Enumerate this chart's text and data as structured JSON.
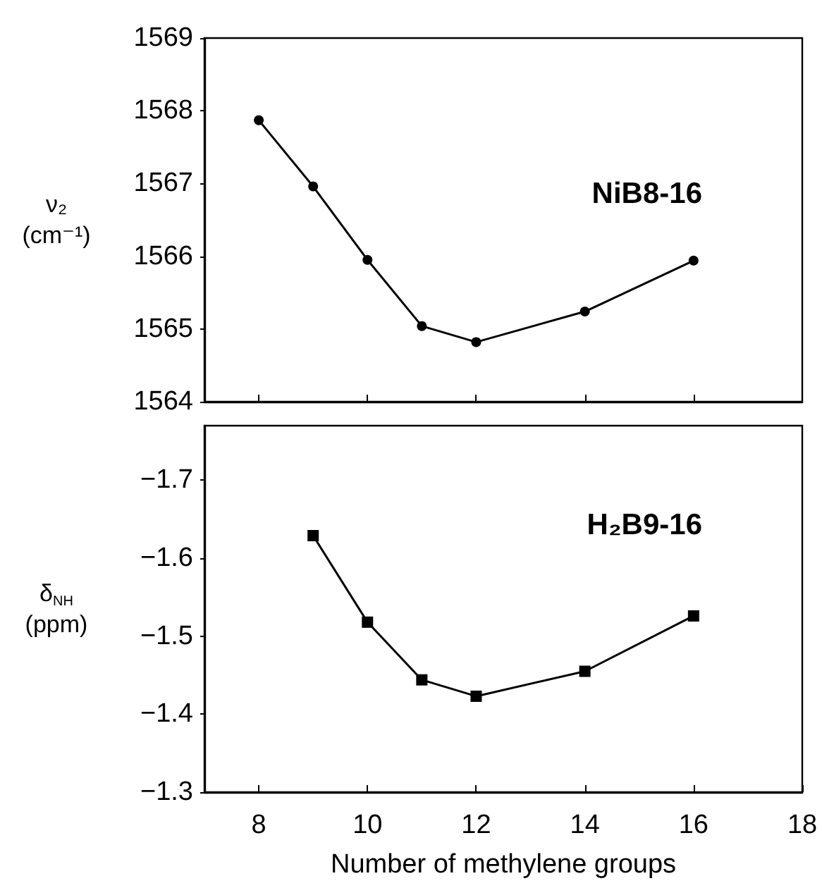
{
  "chart_data": [
    {
      "type": "line",
      "ylabel": "ν₂\n(cm⁻¹)",
      "annotations": [
        "NiB8-16"
      ],
      "xlim": [
        7,
        18
      ],
      "xticks": [
        {
          "value": 8,
          "label": null
        },
        {
          "value": 10,
          "label": null
        },
        {
          "value": 12,
          "label": null
        },
        {
          "value": 14,
          "label": null
        },
        {
          "value": 16,
          "label": null
        }
      ],
      "ylim": [
        1564,
        1569
      ],
      "yticks": [
        1564,
        1565,
        1566,
        1567,
        1568,
        1569
      ],
      "tick_labels": "y",
      "marker": "circle",
      "line_style": "solid",
      "series": [
        {
          "color": "#000000",
          "x": [
            8,
            9,
            10,
            11,
            12,
            14,
            16
          ],
          "values": [
            1567.87,
            1566.96,
            1565.95,
            1565.04,
            1564.82,
            1565.24,
            1565.94
          ]
        }
      ]
    },
    {
      "type": "line",
      "ylabel": "δ$_{NH}$\n(ppm)",
      "xlabel": "Number of methylene groups",
      "annotations": [
        "H₂B9-16"
      ],
      "xlim": [
        7,
        18
      ],
      "xticks": [
        8,
        10,
        12,
        14,
        16,
        18
      ],
      "ylim": [
        -1.3,
        -1.77
      ],
      "yticks": [
        -1.7,
        -1.6,
        -1.5,
        -1.4,
        -1.3
      ],
      "marker": "square",
      "line_style": "solid",
      "series": [
        {
          "color": "#000000",
          "x": [
            9,
            10,
            11,
            12,
            14,
            16
          ],
          "values": [
            -1.629,
            -1.518,
            -1.444,
            -1.423,
            -1.455,
            -1.526
          ]
        }
      ]
    }
  ]
}
